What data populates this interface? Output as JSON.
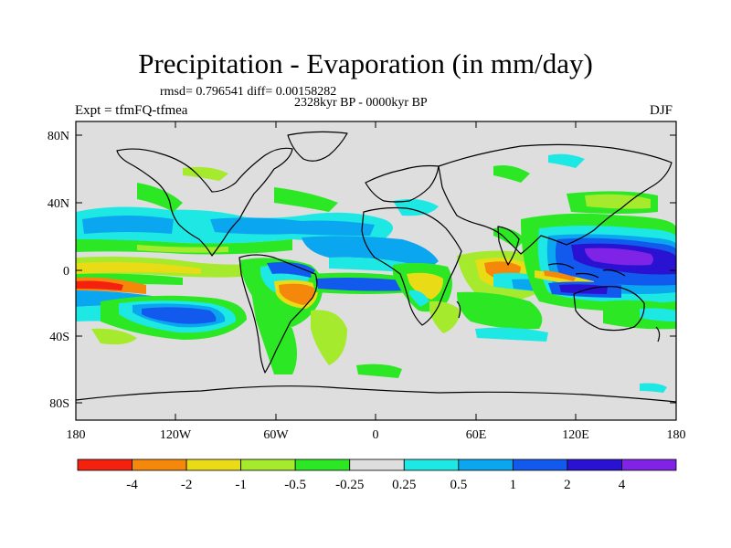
{
  "title": "Precipitation - Evaporation (in mm/day)",
  "stats": "rmsd= 0.796541 diff= 0.00158282",
  "period": "2328kyr BP - 0000kyr BP",
  "experiment": "Expt = tfmFQ-tfmea",
  "season": "DJF",
  "lat_ticks": [
    "80N",
    "40N",
    "0",
    "40S",
    "80S"
  ],
  "lon_ticks": [
    "180",
    "120W",
    "60W",
    "0",
    "60E",
    "120E",
    "180"
  ],
  "colorbar": {
    "labels": [
      "-4",
      "-2",
      "-1",
      "-0.5",
      "-0.25",
      "0.25",
      "0.5",
      "1",
      "2",
      "4"
    ],
    "colors": [
      "#f5210f",
      "#f5880a",
      "#e9dc16",
      "#a6ea2d",
      "#2ce824",
      "#dedede",
      "#1de8e4",
      "#0aa6f0",
      "#1259ee",
      "#2a12d2",
      "#7f23e6"
    ]
  },
  "map_colors": {
    "background": "#dedede",
    "red": "#f5210f",
    "orange": "#f5880a",
    "yellow": "#e9dc16",
    "lime": "#a6ea2d",
    "green": "#2ce824",
    "cyan": "#1de8e4",
    "sky": "#0aa6f0",
    "blue": "#1259ee",
    "navy": "#2a12d2",
    "purple": "#7f23e6"
  }
}
